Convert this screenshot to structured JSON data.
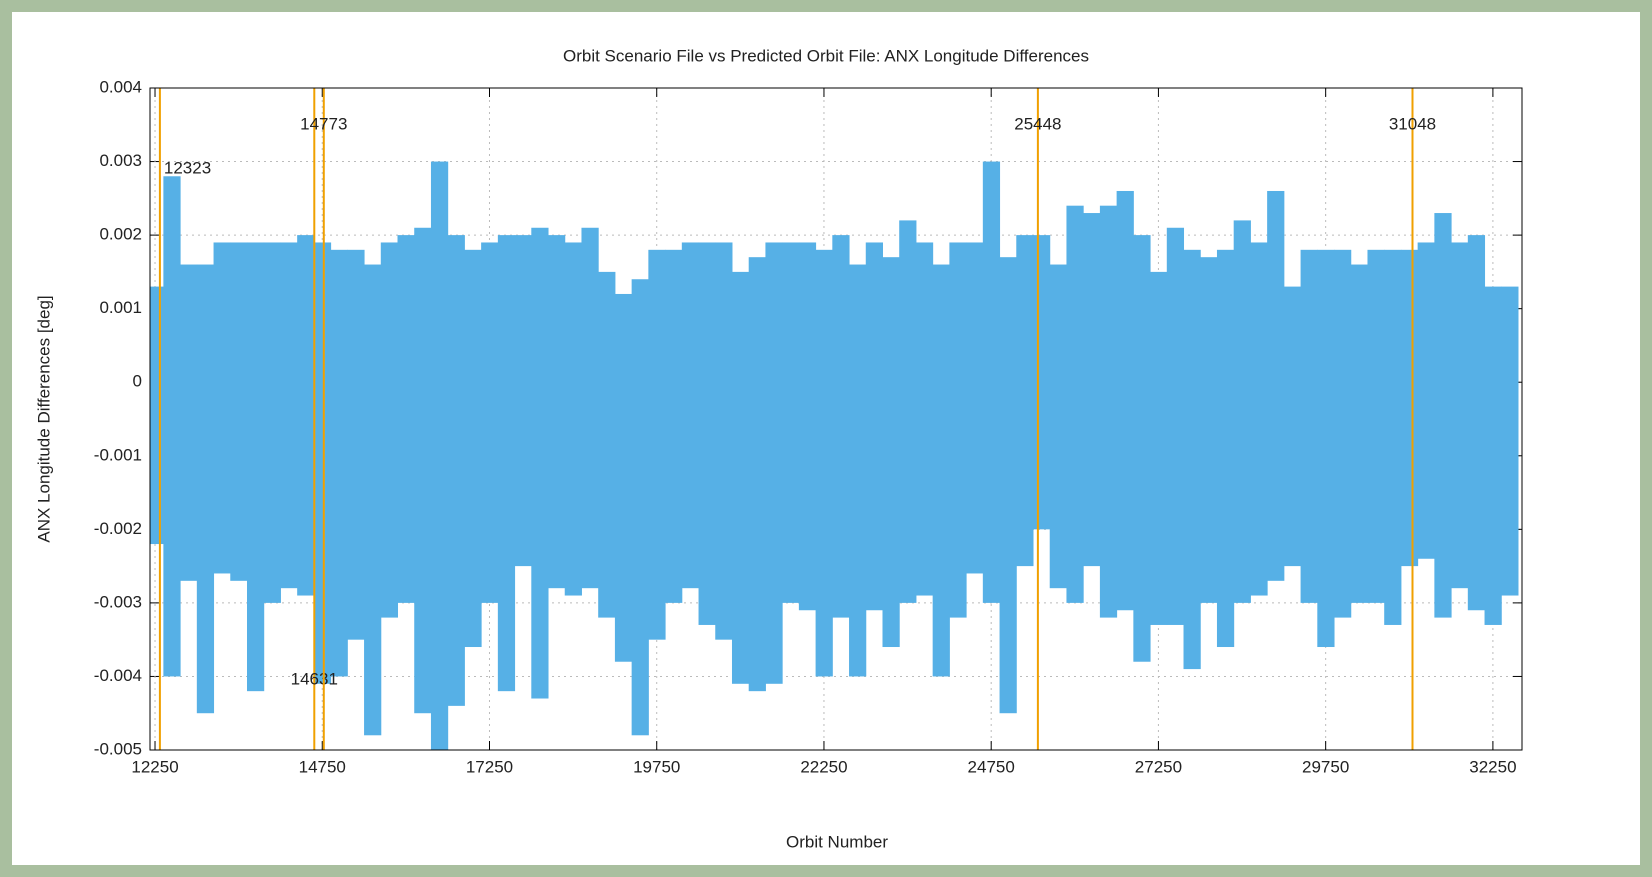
{
  "chart_data": {
    "type": "range",
    "title": "Orbit Scenario File vs Predicted Orbit File: ANX Longitude Differences",
    "x_label": "Orbit Number",
    "y_label": "ANX Longitude Differences [deg]",
    "color": "#56b0e6",
    "line_color": "#f0a000",
    "grid": true,
    "bin_width": 250,
    "xlim": [
      12175,
      32685
    ],
    "ylim": [
      -0.005,
      0.004
    ],
    "xticks": [
      12250,
      14750,
      17250,
      19750,
      22250,
      24750,
      27250,
      29750,
      32250
    ],
    "yticks": [
      -0.005,
      -0.004,
      -0.003,
      -0.002,
      -0.001,
      0,
      0.001,
      0.002,
      0.003,
      0.004
    ],
    "x": [
      12250,
      12500,
      12750,
      13000,
      13250,
      13500,
      13750,
      14000,
      14250,
      14500,
      14750,
      15000,
      15250,
      15500,
      15750,
      16000,
      16250,
      16500,
      16750,
      17000,
      17250,
      17500,
      17750,
      18000,
      18250,
      18500,
      18750,
      19000,
      19250,
      19500,
      19750,
      20000,
      20250,
      20500,
      20750,
      21000,
      21250,
      21500,
      21750,
      22000,
      22250,
      22500,
      22750,
      23000,
      23250,
      23500,
      23750,
      24000,
      24250,
      24500,
      24750,
      25000,
      25250,
      25500,
      25750,
      26000,
      26250,
      26500,
      26750,
      27000,
      27250,
      27500,
      27750,
      28000,
      28250,
      28500,
      28750,
      29000,
      29250,
      29500,
      29750,
      30000,
      30250,
      30500,
      30750,
      31000,
      31250,
      31500,
      31750,
      32000,
      32250,
      32500
    ],
    "upper": [
      0.0013,
      0.0028,
      0.0016,
      0.0016,
      0.0019,
      0.0019,
      0.0019,
      0.0019,
      0.0019,
      0.002,
      0.0019,
      0.0018,
      0.0018,
      0.0016,
      0.0019,
      0.002,
      0.0021,
      0.003,
      0.002,
      0.0018,
      0.0019,
      0.002,
      0.002,
      0.0021,
      0.002,
      0.0019,
      0.0021,
      0.0015,
      0.0012,
      0.0014,
      0.0018,
      0.0018,
      0.0019,
      0.0019,
      0.0019,
      0.0015,
      0.0017,
      0.0019,
      0.0019,
      0.0019,
      0.0018,
      0.002,
      0.0016,
      0.0019,
      0.0017,
      0.0022,
      0.0019,
      0.0016,
      0.0019,
      0.0019,
      0.003,
      0.0017,
      0.002,
      0.002,
      0.0016,
      0.0024,
      0.0023,
      0.0024,
      0.0026,
      0.002,
      0.0015,
      0.0021,
      0.0018,
      0.0017,
      0.0018,
      0.0022,
      0.0019,
      0.0026,
      0.0013,
      0.0018,
      0.0018,
      0.0018,
      0.0016,
      0.0018,
      0.0018,
      0.0018,
      0.0019,
      0.0023,
      0.0019,
      0.002,
      0.0013,
      0.0013
    ],
    "lower": [
      -0.0022,
      -0.004,
      -0.0027,
      -0.0045,
      -0.0026,
      -0.0027,
      -0.0042,
      -0.003,
      -0.0028,
      -0.0029,
      -0.0041,
      -0.004,
      -0.0035,
      -0.0048,
      -0.0032,
      -0.003,
      -0.0045,
      -0.005,
      -0.0044,
      -0.0036,
      -0.003,
      -0.0042,
      -0.0025,
      -0.0043,
      -0.0028,
      -0.0029,
      -0.0028,
      -0.0032,
      -0.0038,
      -0.0048,
      -0.0035,
      -0.003,
      -0.0028,
      -0.0033,
      -0.0035,
      -0.0041,
      -0.0042,
      -0.0041,
      -0.003,
      -0.0031,
      -0.004,
      -0.0032,
      -0.004,
      -0.0031,
      -0.0036,
      -0.003,
      -0.0029,
      -0.004,
      -0.0032,
      -0.0026,
      -0.003,
      -0.0045,
      -0.0025,
      -0.002,
      -0.0028,
      -0.003,
      -0.0025,
      -0.0032,
      -0.0031,
      -0.0038,
      -0.0033,
      -0.0033,
      -0.0039,
      -0.003,
      -0.0036,
      -0.003,
      -0.0029,
      -0.0027,
      -0.0025,
      -0.003,
      -0.0036,
      -0.0032,
      -0.003,
      -0.003,
      -0.0033,
      -0.0025,
      -0.0024,
      -0.0032,
      -0.0028,
      -0.0031,
      -0.0033,
      -0.0029
    ],
    "annotations": [
      {
        "x": 12323,
        "y": 0.0029
      },
      {
        "x": 14631,
        "y": -0.00405
      },
      {
        "x": 14773,
        "y": 0.0035
      },
      {
        "x": 25448,
        "y": 0.0035
      },
      {
        "x": 31048,
        "y": 0.0035
      }
    ]
  }
}
